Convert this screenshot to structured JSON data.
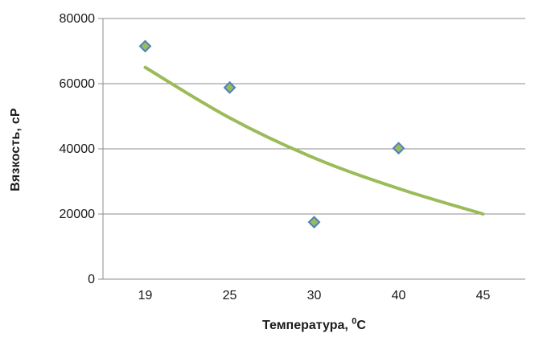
{
  "chart_data": {
    "type": "scatter",
    "title": "",
    "ylabel": "Вязкость, сР",
    "xlabel": "Температура, 0С",
    "xlabel_parts": {
      "prefix": "Температура, ",
      "sup": "0",
      "suffix": "С"
    },
    "categories": [
      "19",
      "25",
      "30",
      "40",
      "45"
    ],
    "points": [
      {
        "category": "19",
        "x": 19,
        "y": 71500
      },
      {
        "category": "25",
        "x": 25,
        "y": 58800
      },
      {
        "category": "30",
        "x": 30,
        "y": 17500
      },
      {
        "category": "40",
        "x": 40,
        "y": 40200
      }
    ],
    "trendline": {
      "categories": [
        "19",
        "25",
        "30",
        "40",
        "45"
      ],
      "values": [
        65000,
        49500,
        37200,
        27800,
        20000
      ]
    },
    "yticks": [
      0,
      20000,
      40000,
      60000,
      80000
    ],
    "ylim": [
      0,
      80000
    ],
    "grid": true,
    "legend": "none",
    "colors": {
      "marker_fill": "#9BBB59",
      "marker_border": "#4F81BD",
      "trendline": "#9BBB59",
      "gridline": "#8C8C8C",
      "axis_line": "#8C8C8C",
      "tick_text": "#1a1a1a",
      "background": "#FFFFFF"
    }
  }
}
